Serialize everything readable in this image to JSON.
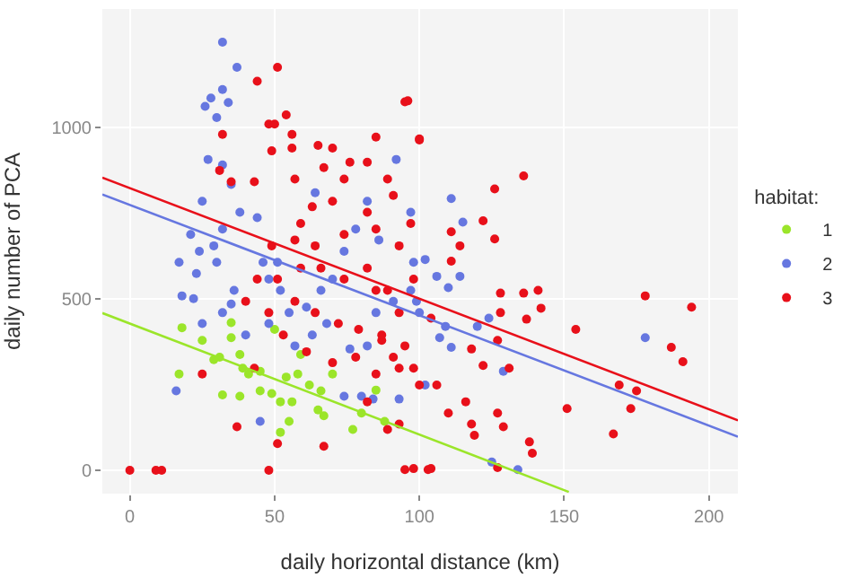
{
  "chart_data": {
    "type": "scatter",
    "xlabel": "daily horizontal distance (km)",
    "ylabel": "daily number of PCA",
    "legend_title": "habitat:",
    "legend": "right",
    "grid": true,
    "xlim": [
      -9.5,
      210
    ],
    "ylim": [
      -68,
      1346
    ],
    "xticks": [
      0,
      50,
      100,
      150,
      200
    ],
    "yticks": [
      0,
      500,
      1000
    ],
    "series": [
      {
        "name": "1",
        "marker": "circle",
        "color": "#9be52a",
        "x": [
          18,
          25,
          35,
          31,
          29,
          35,
          38,
          39,
          32,
          38,
          41,
          45,
          49,
          52,
          52,
          55,
          54,
          58,
          62,
          59,
          66,
          70,
          50,
          17,
          67,
          77,
          80,
          65,
          56,
          45,
          85,
          88
        ],
        "values": [
          416,
          379,
          431,
          330,
          323,
          387,
          338,
          298,
          220,
          216,
          281,
          289,
          224,
          200,
          111,
          143,
          272,
          281,
          249,
          338,
          232,
          281,
          411,
          281,
          159,
          119,
          167,
          176,
          200,
          232,
          234,
          143
        ]
      },
      {
        "name": "2",
        "marker": "circle",
        "color": "#6677e0",
        "x": [
          32,
          37,
          26,
          28,
          30,
          34,
          32,
          27,
          32,
          35,
          25,
          21,
          24,
          23,
          17,
          18,
          22,
          16,
          25,
          32,
          35,
          38,
          44,
          46,
          48,
          51,
          52,
          55,
          61,
          66,
          70,
          74,
          78,
          82,
          86,
          92,
          74,
          80,
          76,
          57,
          48,
          63,
          68,
          82,
          85,
          91,
          97,
          98,
          100,
          40,
          45,
          64,
          36,
          30,
          29,
          32,
          111,
          115,
          106,
          114,
          110,
          102,
          124,
          120,
          109,
          107,
          111,
          129,
          178,
          125,
          134,
          93,
          99,
          102,
          97,
          84
        ],
        "values": [
          1249,
          1176,
          1062,
          1086,
          1029,
          1073,
          1111,
          907,
          891,
          834,
          785,
          688,
          639,
          574,
          607,
          509,
          501,
          232,
          428,
          460,
          485,
          753,
          737,
          607,
          558,
          607,
          525,
          460,
          476,
          525,
          558,
          639,
          704,
          785,
          672,
          907,
          216,
          216,
          354,
          363,
          428,
          395,
          428,
          363,
          460,
          493,
          525,
          607,
          460,
          395,
          143,
          810,
          525,
          607,
          655,
          704,
          793,
          724,
          566,
          566,
          533,
          615,
          444,
          420,
          420,
          387,
          359,
          289,
          387,
          24,
          2,
          208,
          493,
          249,
          753,
          208
        ]
      },
      {
        "name": "3",
        "marker": "circle",
        "color": "#e8101a",
        "x": [
          0,
          9,
          11,
          48,
          51,
          44,
          54,
          48,
          50,
          56,
          49,
          56,
          32,
          31,
          35,
          43,
          65,
          70,
          76,
          82,
          85,
          96,
          100,
          57,
          67,
          74,
          89,
          63,
          59,
          70,
          82,
          91,
          97,
          49,
          57,
          64,
          74,
          85,
          93,
          44,
          51,
          59,
          66,
          74,
          82,
          89,
          98,
          40,
          48,
          57,
          64,
          72,
          79,
          87,
          95,
          53,
          61,
          70,
          78,
          85,
          93,
          100,
          82,
          93,
          89,
          67,
          51,
          37,
          25,
          43,
          98,
          104,
          95,
          100,
          136,
          126,
          122,
          126,
          111,
          114,
          111,
          128,
          136,
          141,
          142,
          128,
          137,
          154,
          178,
          194,
          187,
          191,
          169,
          175,
          173,
          151,
          167,
          138,
          139,
          127,
          95,
          103,
          127,
          129,
          119,
          118,
          116,
          122,
          131,
          118,
          127,
          106,
          110,
          98,
          91,
          87,
          93,
          85,
          104
        ],
        "values": [
          0,
          0,
          0,
          0,
          1176,
          1135,
          1037,
          1010,
          1010,
          980,
          932,
          940,
          980,
          875,
          842,
          842,
          948,
          940,
          899,
          899,
          972,
          1078,
          964,
          850,
          883,
          850,
          850,
          769,
          720,
          785,
          753,
          802,
          720,
          655,
          672,
          655,
          688,
          704,
          655,
          558,
          558,
          590,
          590,
          558,
          590,
          525,
          558,
          493,
          460,
          493,
          460,
          428,
          411,
          379,
          363,
          395,
          346,
          314,
          330,
          281,
          298,
          249,
          200,
          135,
          119,
          70,
          78,
          127,
          281,
          298,
          5,
          5,
          1075,
          967,
          859,
          821,
          728,
          675,
          696,
          655,
          610,
          517,
          517,
          525,
          473,
          460,
          441,
          411,
          509,
          476,
          359,
          317,
          249,
          232,
          180,
          180,
          106,
          83,
          50,
          8,
          2,
          2,
          167,
          127,
          102,
          135,
          200,
          306,
          298,
          354,
          379,
          249,
          167,
          298,
          330,
          395,
          460,
          525,
          444
        ]
      },
      {
        "type": "line",
        "marker": "none",
        "color": "#9be52a",
        "x": [
          -9.5,
          151.6
        ],
        "values": [
          459,
          -63
        ]
      },
      {
        "type": "line",
        "marker": "none",
        "color": "#6677e0",
        "x": [
          -9.5,
          210
        ],
        "values": [
          805,
          98
        ]
      },
      {
        "type": "line",
        "marker": "none",
        "color": "#e8101a",
        "x": [
          -9.5,
          210
        ],
        "values": [
          854,
          146
        ]
      }
    ]
  }
}
